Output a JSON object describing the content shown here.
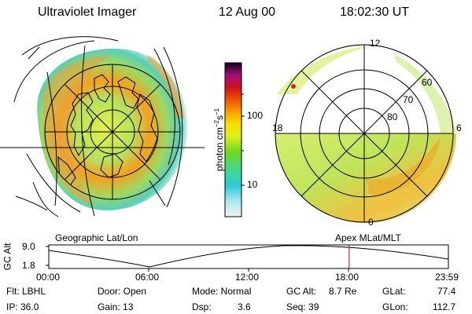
{
  "header": {
    "instrument": "Ultraviolet Imager",
    "date": "12 Aug 00",
    "time": "18:02:30 UT"
  },
  "colorbar": {
    "unit_label": "photon cm",
    "unit_exp1": "−2",
    "unit_s": "s",
    "unit_exp2": "−1",
    "tick_high": "100",
    "tick_low": "10"
  },
  "polar_plot": {
    "mlt_top": "12",
    "mlt_left": "18",
    "mlt_right": "6",
    "mlt_bottom": "0",
    "lat_60": "60",
    "lat_70": "70",
    "lat_80": "80"
  },
  "panel_labels": {
    "left": "Geographic Lat/Lon",
    "right": "Apex MLat/MLT"
  },
  "altitude_plot": {
    "axis_label": "GC Alt",
    "y_high": "9.0",
    "y_low": "1.8",
    "x_ticks": [
      "00:00",
      "06:00",
      "12:00",
      "18:00",
      "23:59"
    ],
    "current_time_fraction": 0.7517
  },
  "status": {
    "flt": "Flt: LBHL",
    "ip": "IP: 36.0",
    "door": "Door: Open",
    "gain": "Gain: 13",
    "mode": "Mode: Normal",
    "dsp_label": "Dsp:",
    "dsp_value": "3.6",
    "gcalt_label": "GC Alt:",
    "gcalt_value": "8.7 Re",
    "seq": "Seq: 39",
    "glat_label": "GLat:",
    "glat_value": "77.4",
    "glon_label": "GLon:",
    "glon_value": "112.7"
  },
  "colors": {
    "line": "#000000",
    "time_marker": "#cc0000"
  }
}
